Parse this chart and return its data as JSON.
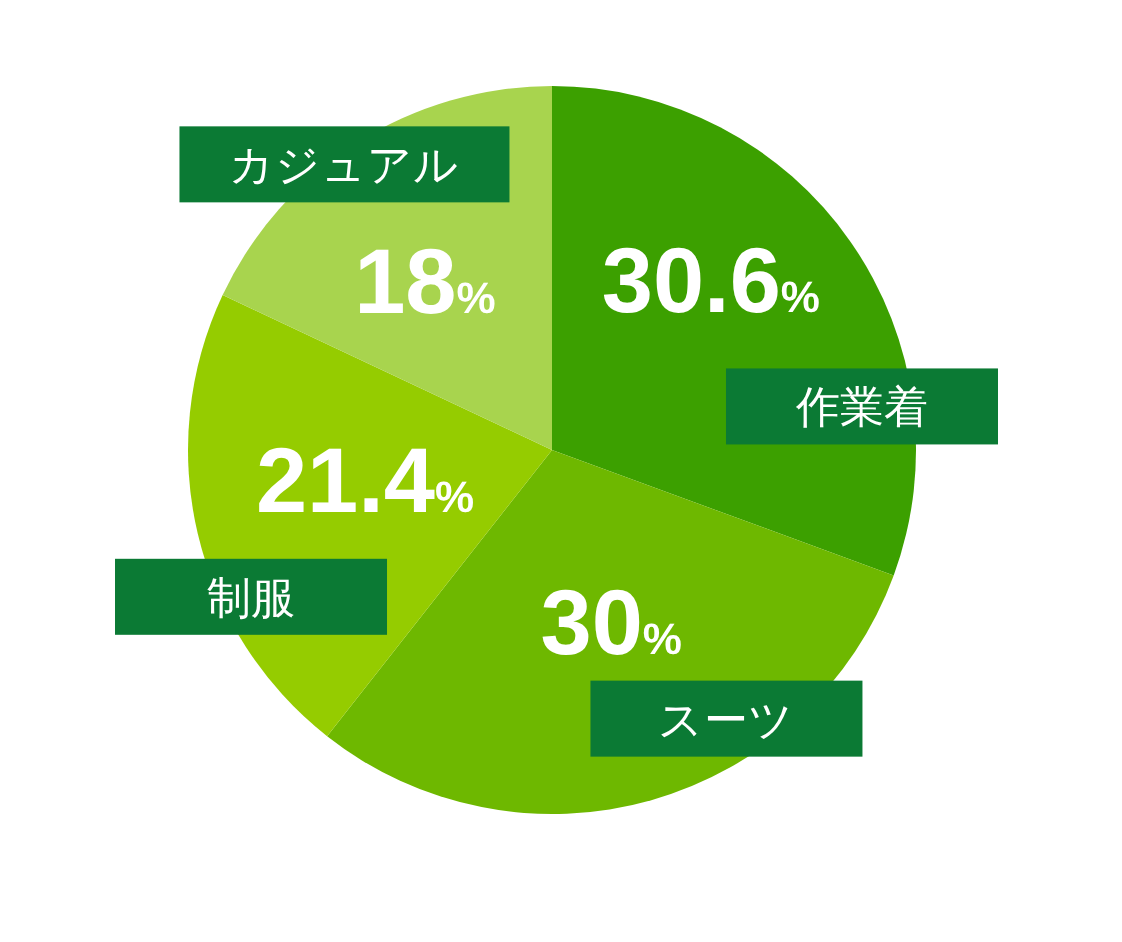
{
  "chart_data": {
    "type": "pie",
    "categories": [
      "作業着",
      "スーツ",
      "制服",
      "カジュアル"
    ],
    "values": [
      30.6,
      30,
      21.4,
      18
    ],
    "colors": [
      "#3ca000",
      "#6eb800",
      "#95cc00",
      "#a8d44e"
    ],
    "value_labels": [
      "30.6%",
      "30%",
      "21.4%",
      "18%"
    ]
  }
}
